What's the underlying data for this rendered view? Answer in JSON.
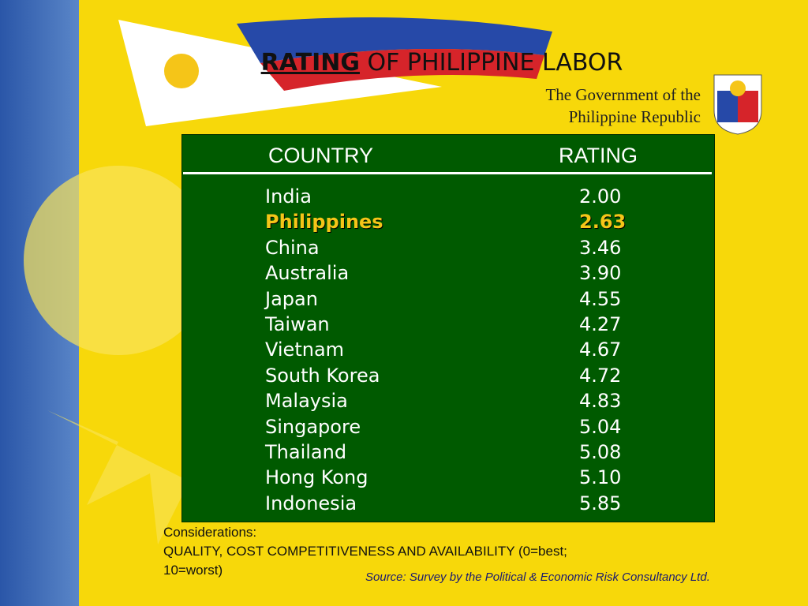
{
  "header": {
    "title_emphasis": "RATING",
    "title_rest": "OF PHILIPPINE LABOR",
    "logo_text": [
      "The Government of the",
      "Philippine Republic"
    ]
  },
  "table": {
    "columns": [
      "COUNTRY",
      "RATING"
    ],
    "rows": [
      [
        "India",
        "2.00"
      ],
      [
        "Philippines",
        "2.63"
      ],
      [
        "China",
        "3.46"
      ],
      [
        "Australia",
        "3.90"
      ],
      [
        "Japan",
        "4.55"
      ],
      [
        "Taiwan",
        "4.27"
      ],
      [
        "Vietnam",
        "4.67"
      ],
      [
        "South Korea",
        "4.72"
      ],
      [
        "Malaysia",
        "4.83"
      ],
      [
        "Singapore",
        "5.04"
      ],
      [
        "Thailand",
        "5.08"
      ],
      [
        "Hong Kong",
        "5.10"
      ],
      [
        "Indonesia",
        "5.85"
      ]
    ],
    "highlight_row": 1,
    "highlight_color": "#f5c518"
  },
  "notes": [
    "Considerations:",
    "QUALITY, COST COMPETITIVENESS AND AVAILABILITY (0=best;",
    "10=worst)"
  ],
  "source": "Source: Survey by the Political & Economic Risk Consultancy Ltd."
}
